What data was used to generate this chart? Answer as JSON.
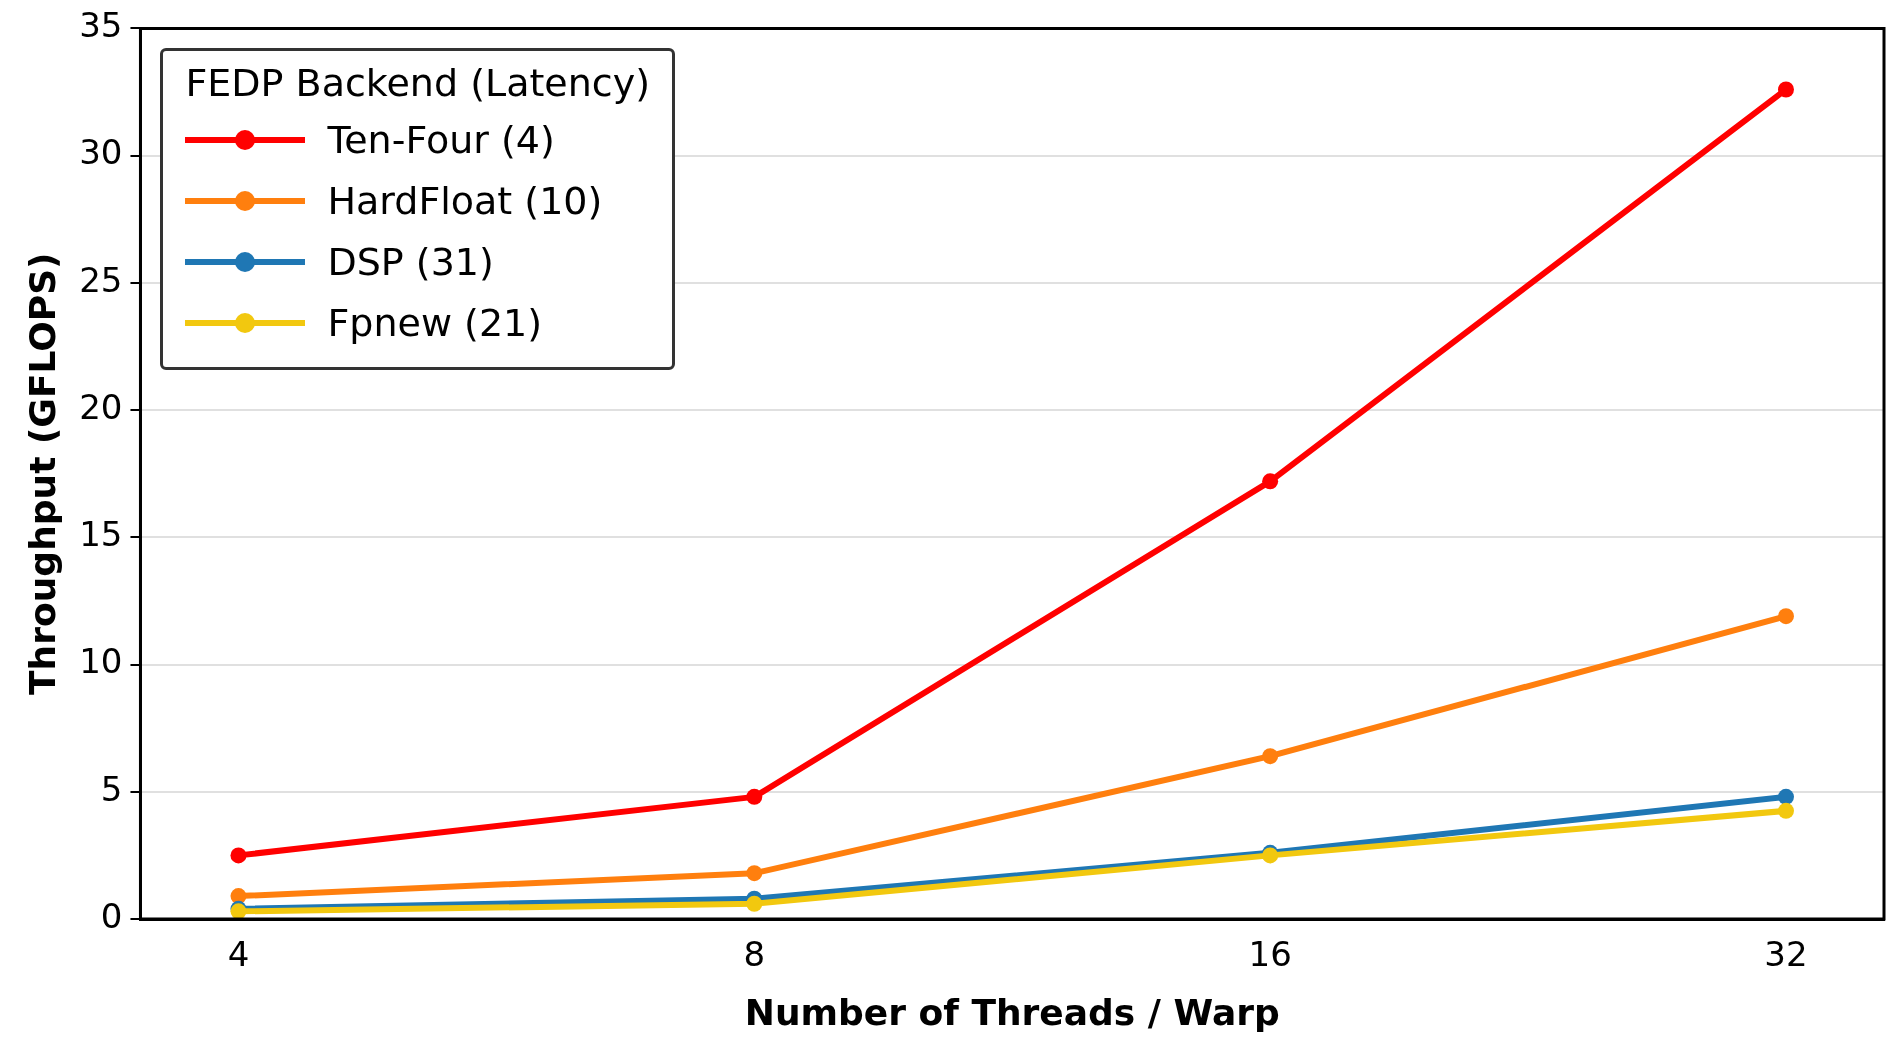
{
  "chart_data": {
    "type": "line",
    "xlabel": "Number of Threads / Warp",
    "ylabel": "Throughput (GFLOPS)",
    "legend_title": "FEDP Backend (Latency)",
    "categories": [
      "4",
      "8",
      "16",
      "32"
    ],
    "ylim": [
      0,
      35
    ],
    "yticks": [
      0,
      5,
      10,
      15,
      20,
      25,
      30,
      35
    ],
    "grid": "y",
    "legend": "top left",
    "marker": "circle",
    "line_style": "solid",
    "series": [
      {
        "name": "Ten-Four (4)",
        "color": "#ff0000",
        "values": [
          2.5,
          4.8,
          17.2,
          32.6
        ]
      },
      {
        "name": "HardFloat (10)",
        "color": "#ff7f0e",
        "values": [
          0.9,
          1.8,
          6.4,
          11.9
        ]
      },
      {
        "name": "DSP (31)",
        "color": "#1f77b4",
        "values": [
          0.4,
          0.8,
          2.6,
          4.8
        ]
      },
      {
        "name": "Fpnew (21)",
        "color": "#f2c80f",
        "values": [
          0.3,
          0.6,
          2.5,
          4.25
        ]
      }
    ]
  }
}
